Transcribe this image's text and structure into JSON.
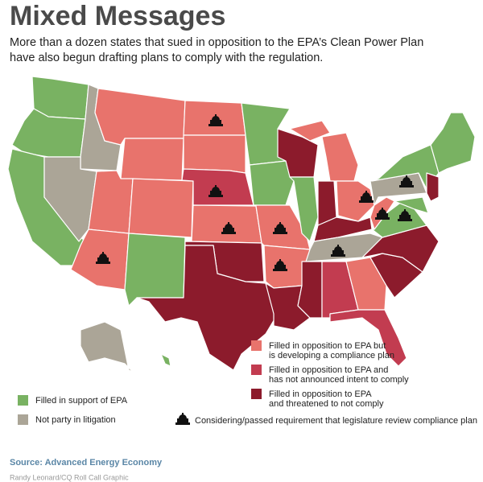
{
  "header": {
    "title": "Mixed Messages",
    "subtitle": [
      "More than a dozen states that sued in opposition to the EPA’s Clean Power Plan",
      "have also begun drafting plans to comply with the regulation."
    ]
  },
  "legend": {
    "items": [
      {
        "label": [
          "Filled in opposition to EPA but",
          "is developing a compliance plan"
        ],
        "color": "#e8736c"
      },
      {
        "label": [
          "Filled in opposition to EPA and",
          "has not announced intent to comply"
        ],
        "color": "#c23c50"
      },
      {
        "label": [
          "Filled in opposition to EPA",
          "and threatened to not comply"
        ],
        "color": "#8c1b2c"
      },
      {
        "label": [
          "Filled in support of EPA"
        ],
        "color": "#79b262"
      },
      {
        "label": [
          "Not party in litigation"
        ],
        "color": "#aba597"
      }
    ],
    "icon_label": "Considering/passed requirement that legislature review compliance plan"
  },
  "footer": {
    "source": "Source: Advanced Energy Economy",
    "credit": "Randy Leonard/CQ Roll Call Graphic"
  }
}
